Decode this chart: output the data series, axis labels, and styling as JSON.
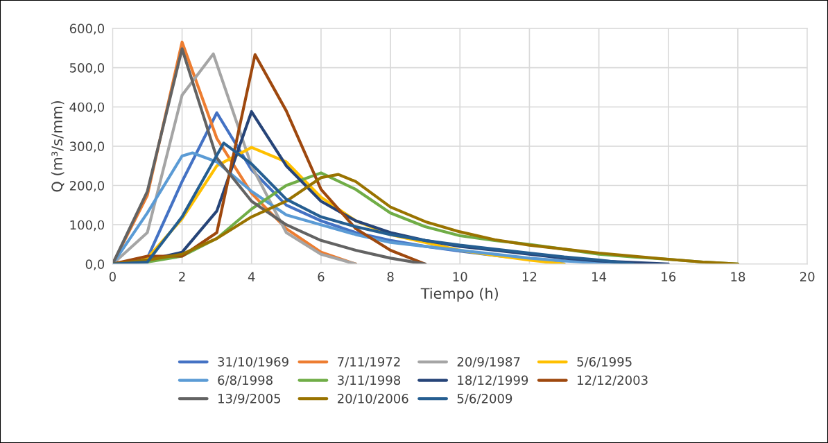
{
  "chart_data": {
    "type": "line",
    "xlabel": "Tiempo (h)",
    "ylabel": "Q (m³/s/mm)",
    "xlim": [
      0,
      20
    ],
    "xticks": [
      0,
      2,
      4,
      6,
      8,
      10,
      12,
      14,
      16,
      18,
      20
    ],
    "ylim": [
      0,
      600
    ],
    "yticks": [
      {
        "value": 0,
        "label": "0,0"
      },
      {
        "value": 100,
        "label": "100,0"
      },
      {
        "value": 200,
        "label": "200,0"
      },
      {
        "value": 300,
        "label": "300,0"
      },
      {
        "value": 400,
        "label": "400,0"
      },
      {
        "value": 500,
        "label": "500,0"
      },
      {
        "value": 600,
        "label": "600,0"
      }
    ],
    "grid": true,
    "legend": "bottom",
    "marker": "none",
    "line_style": "solid",
    "series": [
      {
        "name": "31/10/1969",
        "color": "#4472c4",
        "x": [
          0,
          1,
          2,
          3,
          4,
          5,
          6,
          7,
          8,
          9,
          10,
          11,
          12,
          13
        ],
        "values": [
          0,
          15,
          210,
          385,
          240,
          150,
          110,
          80,
          60,
          45,
          33,
          22,
          12,
          0
        ]
      },
      {
        "name": "7/11/1972",
        "color": "#ed7d31",
        "x": [
          0,
          1,
          2,
          3,
          4,
          5,
          6,
          7
        ],
        "values": [
          0,
          175,
          565,
          320,
          180,
          90,
          30,
          0
        ]
      },
      {
        "name": "20/9/1987",
        "color": "#a5a5a5",
        "x": [
          0,
          1,
          2,
          2.9,
          4,
          5,
          6,
          7
        ],
        "values": [
          0,
          80,
          430,
          535,
          250,
          80,
          25,
          0
        ]
      },
      {
        "name": "5/6/1995",
        "color": "#ffc000",
        "x": [
          0,
          1,
          2,
          3,
          4,
          5,
          6,
          7,
          8,
          9,
          10,
          11,
          12,
          13
        ],
        "values": [
          0,
          15,
          115,
          250,
          297,
          260,
          170,
          110,
          75,
          55,
          35,
          22,
          10,
          0
        ]
      },
      {
        "name": "6/8/1998",
        "color": "#5b9bd5",
        "x": [
          0,
          1,
          2,
          2.3,
          3,
          4,
          5,
          6,
          7,
          8,
          9,
          10,
          11,
          12,
          13,
          14,
          15
        ],
        "values": [
          0,
          130,
          275,
          283,
          260,
          185,
          125,
          100,
          75,
          55,
          45,
          35,
          25,
          15,
          8,
          3,
          0
        ]
      },
      {
        "name": "3/11/1998",
        "color": "#70ad47",
        "x": [
          0,
          1,
          2,
          3,
          4,
          5,
          6,
          7,
          8,
          9,
          10,
          11,
          12,
          13,
          14,
          15,
          16,
          17,
          18
        ],
        "values": [
          0,
          5,
          20,
          65,
          140,
          200,
          232,
          190,
          130,
          95,
          72,
          60,
          50,
          38,
          25,
          18,
          12,
          5,
          0
        ]
      },
      {
        "name": "18/12/1999",
        "color": "#264478",
        "x": [
          0,
          1,
          2,
          3,
          4,
          5,
          6,
          7,
          8,
          9,
          10,
          11,
          12,
          13,
          14,
          15,
          16
        ],
        "values": [
          0,
          10,
          30,
          135,
          388,
          250,
          160,
          110,
          80,
          60,
          45,
          35,
          25,
          15,
          8,
          4,
          0
        ]
      },
      {
        "name": "12/12/2003",
        "color": "#9e480e",
        "x": [
          0,
          1,
          2,
          3,
          4.1,
          5,
          6,
          7,
          8,
          9
        ],
        "values": [
          0,
          20,
          20,
          80,
          533,
          390,
          190,
          90,
          35,
          0
        ]
      },
      {
        "name": "13/9/2005",
        "color": "#636363",
        "x": [
          0,
          1,
          2,
          3,
          4,
          5,
          6,
          7,
          8,
          9
        ],
        "values": [
          0,
          185,
          548,
          270,
          160,
          100,
          60,
          35,
          15,
          0
        ]
      },
      {
        "name": "20/10/2006",
        "color": "#997300",
        "x": [
          0,
          1,
          2,
          3,
          4,
          5,
          6,
          6.5,
          7,
          8,
          9,
          10,
          11,
          12,
          13,
          14,
          15,
          16,
          17,
          18
        ],
        "values": [
          0,
          10,
          25,
          65,
          120,
          160,
          220,
          228,
          210,
          145,
          108,
          82,
          62,
          48,
          38,
          28,
          20,
          12,
          5,
          0
        ]
      },
      {
        "name": "5/6/2009",
        "color": "#255e91",
        "x": [
          0,
          1,
          2,
          3.2,
          4,
          5,
          6,
          7,
          8,
          9,
          10,
          11,
          12,
          13,
          14,
          15
        ],
        "values": [
          0,
          5,
          120,
          308,
          255,
          165,
          120,
          95,
          75,
          60,
          48,
          38,
          28,
          18,
          10,
          0
        ]
      }
    ]
  }
}
